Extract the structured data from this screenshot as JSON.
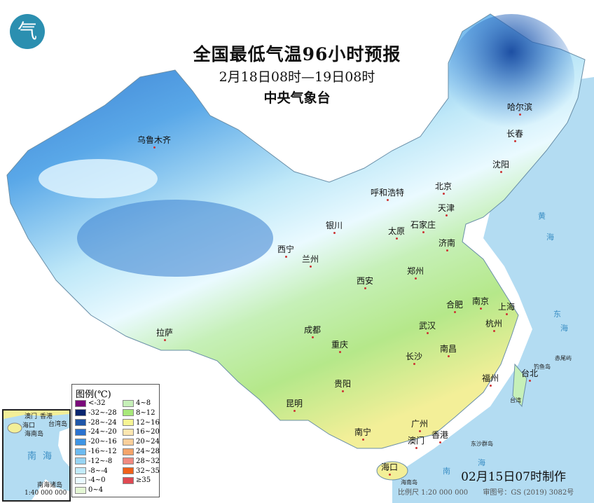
{
  "header": {
    "title": "全国最低气温96小时预报",
    "period": "2月18日08时—19日08时",
    "issuer": "中央气象台",
    "logo_text": "气"
  },
  "map": {
    "cities": [
      "乌鲁木齐",
      "哈尔滨",
      "长春",
      "沈阳",
      "北京",
      "天津",
      "呼和浩特",
      "石家庄",
      "太原",
      "济南",
      "银川",
      "西宁",
      "兰州",
      "西安",
      "郑州",
      "合肥",
      "南京",
      "上海",
      "杭州",
      "武汉",
      "成都",
      "重庆",
      "拉萨",
      "长沙",
      "南昌",
      "福州",
      "台北",
      "贵阳",
      "昆明",
      "南宁",
      "广州",
      "澳门",
      "香港",
      "海口"
    ],
    "labels": [
      "黄",
      "海",
      "东",
      "海",
      "钓鱼岛",
      "赤尾屿",
      "台湾",
      "东沙群岛",
      "海南岛",
      "南",
      "海"
    ]
  },
  "legend": {
    "title": "图例(℃)",
    "items": [
      {
        "label": "<-32",
        "color": "#7a0a7a"
      },
      {
        "label": "-32~-28",
        "color": "#08256e"
      },
      {
        "label": "-28~-24",
        "color": "#1f56a8"
      },
      {
        "label": "-24~-20",
        "color": "#2b72cf"
      },
      {
        "label": "-20~-16",
        "color": "#3e94e4"
      },
      {
        "label": "-16~-12",
        "color": "#6cbaf0"
      },
      {
        "label": "-12~-8",
        "color": "#97d4f3"
      },
      {
        "label": "-8~-4",
        "color": "#c2ebfa"
      },
      {
        "label": "-4~0",
        "color": "#eafaff"
      },
      {
        "label": "0~4",
        "color": "#e4f7d4"
      },
      {
        "label": "4~8",
        "color": "#c6f0b8"
      },
      {
        "label": "8~12",
        "color": "#a8e87a"
      },
      {
        "label": "12~16",
        "color": "#f6f494"
      },
      {
        "label": "16~20",
        "color": "#fbe6b0"
      },
      {
        "label": "20~24",
        "color": "#f9cf9a"
      },
      {
        "label": "24~28",
        "color": "#f4a46a"
      },
      {
        "label": "28~32",
        "color": "#f08a80"
      },
      {
        "label": "32~35",
        "color": "#f0601a"
      },
      {
        "label": "≥35",
        "color": "#e04a52"
      }
    ]
  },
  "inset": {
    "labels": [
      "澳门",
      "香港",
      "台湾岛",
      "海口",
      "海南岛",
      "南",
      "海",
      "南海诸岛"
    ],
    "scale": "1:40 000 000"
  },
  "footer": {
    "made": "02月15日07时制作",
    "scale": "比例尺 1:20 000 000",
    "approval": "审图号：GS (2019) 3082号"
  }
}
